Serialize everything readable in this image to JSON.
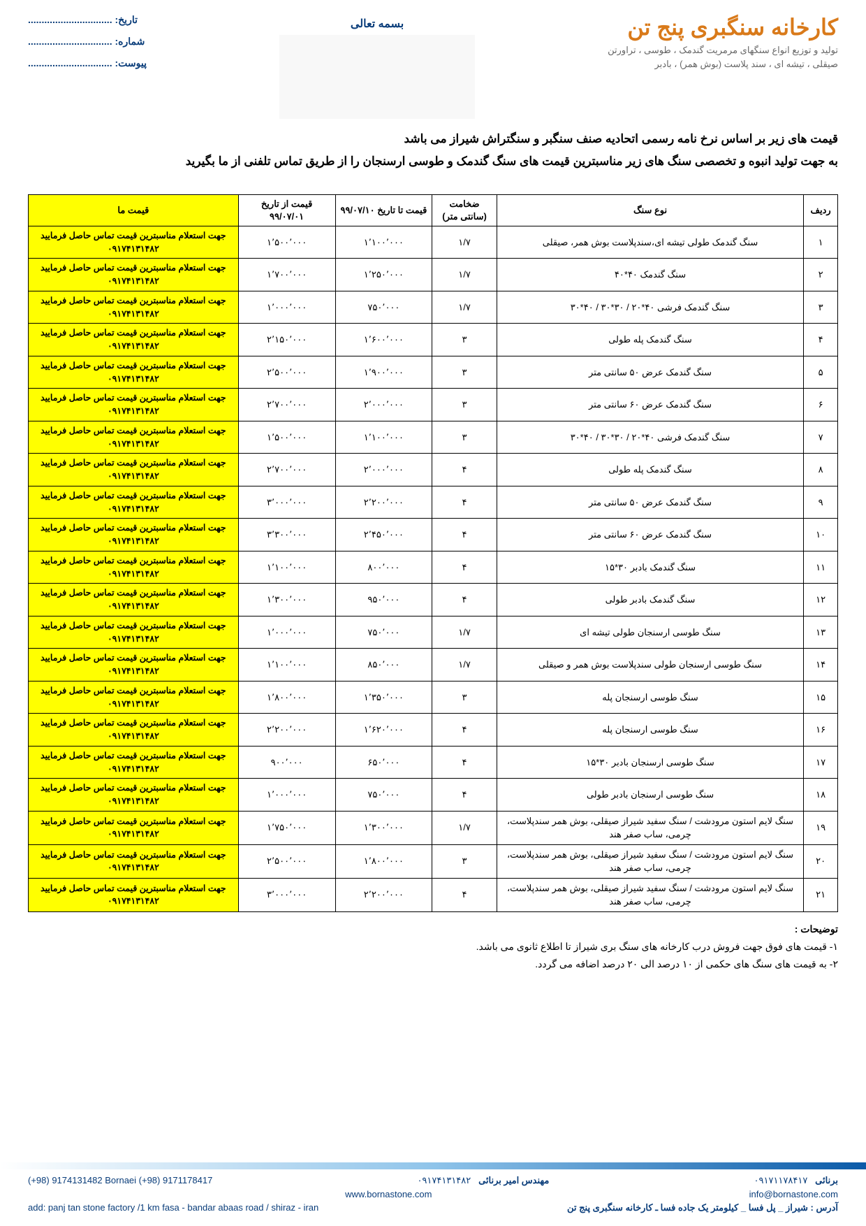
{
  "header": {
    "bismillah": "بسمه تعالی",
    "company_title": "کارخانه سنگبری پنج تن",
    "company_sub1": "تولید و توزیع انواع سنگهای مرمریت گندمک ، طوسی ، تراورتن",
    "company_sub2": "صیقلی ، تیشه ای ، سند پلاست (بوش همر) ، بادبر",
    "date_label": "تاریخ:",
    "number_label": "شماره:",
    "attach_label": "پیوست:",
    "dots": "..............................."
  },
  "intro": {
    "line1": "قیمت های زیر بر اساس نرخ نامه رسمی اتحادیه صنف سنگبر و سنگتراش شیراز می باشد",
    "line2": "به جهت تولید انبوه و تخصصی سنگ های زیر مناسبترین قیمت های سنگ گندمک و طوسی ارسنجان را از طریق تماس تلفنی از ما بگیرید"
  },
  "table": {
    "headers": {
      "row": "ردیف",
      "type": "نوع سنگ",
      "thickness": "ضخامت (سانتی متر)",
      "price_to": "قیمت تا تاریخ ۹۹/۰۷/۱۰",
      "price_from": "قیمت از تاریخ ۹۹/۰۷/۰۱",
      "our_price": "قیمت ما"
    },
    "our_price_text": "جهت استعلام  مناسبترین قیمت تماس حاصل فرمایید ۰۹۱۷۴۱۳۱۴۸۲",
    "rows": [
      {
        "n": "۱",
        "type": "سنگ گندمک طولی تیشه ای،سندپلاست بوش همر، صیقلی",
        "thick": "۱/۷",
        "p_to": "۱٬۱۰۰٬۰۰۰",
        "p_from": "۱٬۵۰۰٬۰۰۰"
      },
      {
        "n": "۲",
        "type": "سنگ گندمک ۴۰*۴۰",
        "thick": "۱/۷",
        "p_to": "۱٬۲۵۰٬۰۰۰",
        "p_from": "۱٬۷۰۰٬۰۰۰"
      },
      {
        "n": "۳",
        "type": "سنگ گندمک فرشی ۴۰*۲۰ / ۳۰*۳۰ / ۴۰*۳۰",
        "thick": "۱/۷",
        "p_to": "۷۵۰٬۰۰۰",
        "p_from": "۱٬۰۰۰٬۰۰۰"
      },
      {
        "n": "۴",
        "type": "سنگ گندمک پله طولی",
        "thick": "۳",
        "p_to": "۱٬۶۰۰٬۰۰۰",
        "p_from": "۲٬۱۵۰٬۰۰۰"
      },
      {
        "n": "۵",
        "type": "سنگ گندمک عرض ۵۰ سانتی متر",
        "thick": "۳",
        "p_to": "۱٬۹۰۰٬۰۰۰",
        "p_from": "۲٬۵۰۰٬۰۰۰"
      },
      {
        "n": "۶",
        "type": "سنگ گندمک عرض ۶۰ سانتی متر",
        "thick": "۳",
        "p_to": "۲٬۰۰۰٬۰۰۰",
        "p_from": "۲٬۷۰۰٬۰۰۰"
      },
      {
        "n": "۷",
        "type": "سنگ گندمک فرشی ۴۰*۲۰ / ۳۰*۳۰ / ۴۰*۳۰",
        "thick": "۳",
        "p_to": "۱٬۱۰۰٬۰۰۰",
        "p_from": "۱٬۵۰۰٬۰۰۰"
      },
      {
        "n": "۸",
        "type": "سنگ گندمک پله طولی",
        "thick": "۴",
        "p_to": "۲٬۰۰۰٬۰۰۰",
        "p_from": "۲٬۷۰۰٬۰۰۰"
      },
      {
        "n": "۹",
        "type": "سنگ گندمک عرض ۵۰ سانتی متر",
        "thick": "۴",
        "p_to": "۲٬۲۰۰٬۰۰۰",
        "p_from": "۳٬۰۰۰٬۰۰۰"
      },
      {
        "n": "۱۰",
        "type": "سنگ گندمک عرض ۶۰ سانتی متر",
        "thick": "۴",
        "p_to": "۲٬۴۵۰٬۰۰۰",
        "p_from": "۳٬۳۰۰٬۰۰۰"
      },
      {
        "n": "۱۱",
        "type": "سنگ گندمک بادبر ۳۰*۱۵",
        "thick": "۴",
        "p_to": "۸۰۰٬۰۰۰",
        "p_from": "۱٬۱۰۰٬۰۰۰"
      },
      {
        "n": "۱۲",
        "type": "سنگ گندمک بادبر طولی",
        "thick": "۴",
        "p_to": "۹۵۰٬۰۰۰",
        "p_from": "۱٬۳۰۰٬۰۰۰"
      },
      {
        "n": "۱۳",
        "type": "سنگ طوسی ارسنجان طولی تیشه ای",
        "thick": "۱/۷",
        "p_to": "۷۵۰٬۰۰۰",
        "p_from": "۱٬۰۰۰٬۰۰۰"
      },
      {
        "n": "۱۴",
        "type": "سنگ طوسی ارسنجان طولی سندپلاست بوش همر و صیقلی",
        "thick": "۱/۷",
        "p_to": "۸۵۰٬۰۰۰",
        "p_from": "۱٬۱۰۰٬۰۰۰"
      },
      {
        "n": "۱۵",
        "type": "سنگ طوسی ارسنجان پله",
        "thick": "۳",
        "p_to": "۱٬۳۵۰٬۰۰۰",
        "p_from": "۱٬۸۰۰٬۰۰۰"
      },
      {
        "n": "۱۶",
        "type": "سنگ طوسی ارسنجان پله",
        "thick": "۴",
        "p_to": "۱٬۶۲۰٬۰۰۰",
        "p_from": "۲٬۲۰۰٬۰۰۰"
      },
      {
        "n": "۱۷",
        "type": "سنگ طوسی ارسنجان بادبر ۳۰*۱۵",
        "thick": "۴",
        "p_to": "۶۵۰٬۰۰۰",
        "p_from": "۹۰۰٬۰۰۰"
      },
      {
        "n": "۱۸",
        "type": "سنگ طوسی ارسنجان بادبر طولی",
        "thick": "۴",
        "p_to": "۷۵۰٬۰۰۰",
        "p_from": "۱٬۰۰۰٬۰۰۰"
      },
      {
        "n": "۱۹",
        "type": "سنگ لایم استون مرودشت / سنگ سفید شیراز صیقلی، بوش همر سندپلاست، چرمی، ساب صفر هند",
        "thick": "۱/۷",
        "p_to": "۱٬۳۰۰٬۰۰۰",
        "p_from": "۱٬۷۵۰٬۰۰۰"
      },
      {
        "n": "۲۰",
        "type": "سنگ لایم استون مرودشت / سنگ سفید شیراز صیقلی، بوش همر سندپلاست، چرمی، ساب صفر هند",
        "thick": "۳",
        "p_to": "۱٬۸۰۰٬۰۰۰",
        "p_from": "۲٬۵۰۰٬۰۰۰"
      },
      {
        "n": "۲۱",
        "type": "سنگ لایم استون مرودشت / سنگ سفید شیراز صیقلی، بوش همر سندپلاست، چرمی، ساب صفر هند",
        "thick": "۴",
        "p_to": "۲٬۲۰۰٬۰۰۰",
        "p_from": "۳٬۰۰۰٬۰۰۰"
      }
    ]
  },
  "notes": {
    "title": "توضیحات :",
    "n1": "۱- قیمت های فوق جهت فروش درب کارخانه های سنگ بری شیراز تا اطلاع ثانوی می باشد.",
    "n2": "۲- به قیمت های سنگ های حکمی از ۱۰ درصد الی ۲۰ درصد اضافه می گردد."
  },
  "footer": {
    "name1": "برنائی",
    "phone1": "۰۹۱۷۱۱۷۸۴۱۷",
    "name2": "مهندس امیر برنائی",
    "phone2": "۰۹۱۷۴۱۳۱۴۸۲",
    "email": "info@bornastone.com",
    "website": "www.bornastone.com",
    "phones_en": "(+98) 9174131482 Bornaei    (+98) 9171178417",
    "address_fa": "آدرس : شیراز _ پل فسا _ کیلومتر یک جاده فسا ـ کارخانه سنگبری پنج تن",
    "address_en": "add: panj tan stone factory /1 km fasa - bandar abaas road / shiraz - iran"
  },
  "colors": {
    "brand_orange": "#d97a1a",
    "brand_blue": "#0a3d7a",
    "highlight_yellow": "#ffff00",
    "border": "#000000",
    "text_gray": "#666666"
  }
}
